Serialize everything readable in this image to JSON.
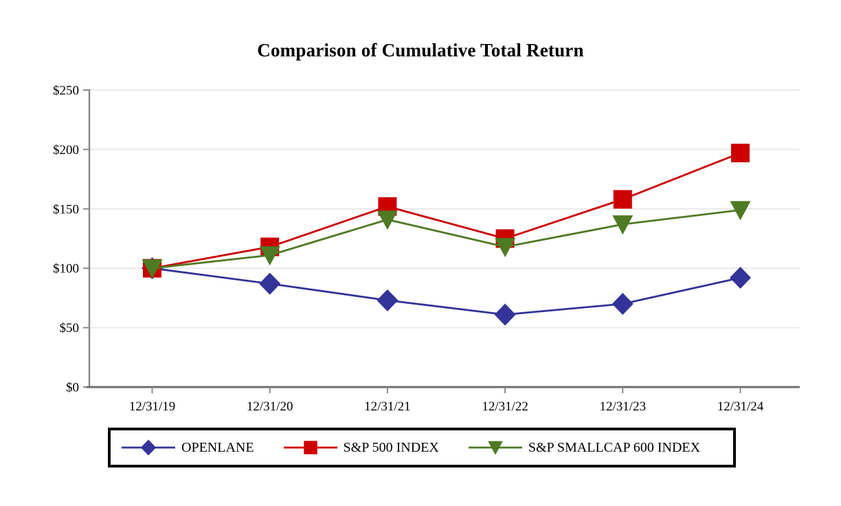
{
  "page": {
    "background": "#ffffff"
  },
  "chart_data": {
    "type": "line",
    "title": "Comparison of Cumulative Total Return",
    "categories": [
      "12/31/19",
      "12/31/20",
      "12/31/21",
      "12/31/22",
      "12/31/23",
      "12/31/24"
    ],
    "series": [
      {
        "name": "OPENLANE",
        "marker": "diamond-icon",
        "color": "#333399",
        "values": [
          100,
          87,
          73,
          61,
          70,
          92
        ]
      },
      {
        "name": "S&P 500 INDEX",
        "marker": "square-icon",
        "color": "#CC0000",
        "values": [
          100,
          118,
          152,
          125,
          158,
          197
        ]
      },
      {
        "name": "S&P SMALLCAP 600 INDEX",
        "marker": "triangle-down-icon",
        "color": "#4E7A23",
        "values": [
          100,
          111,
          141,
          118,
          137,
          149
        ]
      }
    ],
    "ylim": [
      0,
      250
    ],
    "ytick_step": 50,
    "ytick_labels": [
      "$0",
      "$50",
      "$100",
      "$150",
      "$200",
      "$250"
    ],
    "xlabel": "",
    "ylabel": "",
    "grid": true,
    "legend_position": "bottom",
    "axis_color": "#898989",
    "baseline_color": "#6e6e6e",
    "gridline_color": "#e9e9e9",
    "text_color": "#000000"
  }
}
